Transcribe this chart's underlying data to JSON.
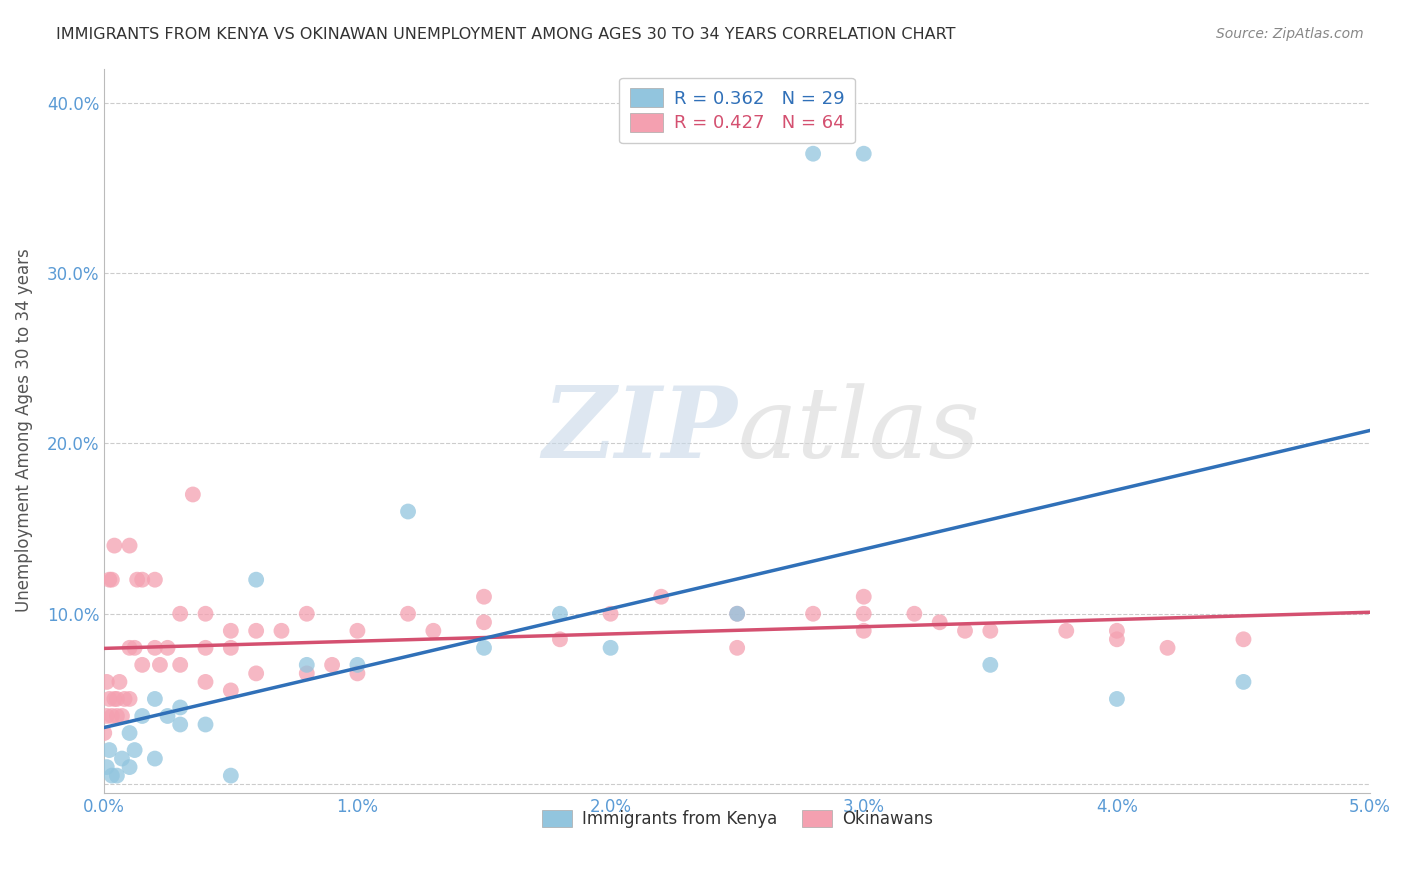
{
  "title": "IMMIGRANTS FROM KENYA VS OKINAWAN UNEMPLOYMENT AMONG AGES 30 TO 34 YEARS CORRELATION CHART",
  "source": "Source: ZipAtlas.com",
  "ylabel": "Unemployment Among Ages 30 to 34 years",
  "xlim": [
    0.0,
    0.05
  ],
  "ylim": [
    -0.005,
    0.42
  ],
  "xticks": [
    0.0,
    0.01,
    0.02,
    0.03,
    0.04,
    0.05
  ],
  "xtick_labels": [
    "0.0%",
    "1.0%",
    "2.0%",
    "3.0%",
    "4.0%",
    "5.0%"
  ],
  "yticks": [
    0.0,
    0.1,
    0.2,
    0.3,
    0.4
  ],
  "ytick_labels": [
    "",
    "10.0%",
    "20.0%",
    "30.0%",
    "40.0%"
  ],
  "legend1_label": "R = 0.362   N = 29",
  "legend2_label": "R = 0.427   N = 64",
  "series1_color": "#92c5de",
  "series2_color": "#f4a0b0",
  "trend1_color": "#3070b8",
  "trend2_color": "#d45070",
  "watermark_zip": "ZIP",
  "watermark_atlas": "atlas",
  "kenya_x": [
    0.0001,
    0.0002,
    0.0003,
    0.0005,
    0.0007,
    0.001,
    0.001,
    0.0012,
    0.0015,
    0.002,
    0.002,
    0.0025,
    0.003,
    0.003,
    0.004,
    0.005,
    0.006,
    0.008,
    0.01,
    0.012,
    0.015,
    0.018,
    0.02,
    0.025,
    0.028,
    0.03,
    0.035,
    0.04,
    0.045
  ],
  "kenya_y": [
    0.01,
    0.02,
    0.005,
    0.005,
    0.015,
    0.01,
    0.03,
    0.02,
    0.04,
    0.015,
    0.05,
    0.04,
    0.045,
    0.035,
    0.035,
    0.005,
    0.12,
    0.07,
    0.07,
    0.16,
    0.08,
    0.1,
    0.08,
    0.1,
    0.37,
    0.37,
    0.07,
    0.05,
    0.06
  ],
  "okinawan_x": [
    0.0,
    0.0001,
    0.0001,
    0.0002,
    0.0002,
    0.0003,
    0.0003,
    0.0004,
    0.0004,
    0.0005,
    0.0005,
    0.0006,
    0.0007,
    0.0008,
    0.001,
    0.001,
    0.001,
    0.0012,
    0.0013,
    0.0015,
    0.0015,
    0.002,
    0.002,
    0.0022,
    0.0025,
    0.003,
    0.003,
    0.0035,
    0.004,
    0.004,
    0.004,
    0.005,
    0.005,
    0.005,
    0.006,
    0.006,
    0.007,
    0.008,
    0.008,
    0.009,
    0.01,
    0.01,
    0.012,
    0.013,
    0.015,
    0.015,
    0.018,
    0.02,
    0.022,
    0.025,
    0.025,
    0.028,
    0.03,
    0.03,
    0.03,
    0.032,
    0.033,
    0.034,
    0.035,
    0.038,
    0.04,
    0.04,
    0.042,
    0.045
  ],
  "okinawan_y": [
    0.03,
    0.04,
    0.06,
    0.05,
    0.12,
    0.04,
    0.12,
    0.05,
    0.14,
    0.05,
    0.04,
    0.06,
    0.04,
    0.05,
    0.05,
    0.08,
    0.14,
    0.08,
    0.12,
    0.07,
    0.12,
    0.08,
    0.12,
    0.07,
    0.08,
    0.07,
    0.1,
    0.17,
    0.06,
    0.08,
    0.1,
    0.08,
    0.055,
    0.09,
    0.09,
    0.065,
    0.09,
    0.065,
    0.1,
    0.07,
    0.065,
    0.09,
    0.1,
    0.09,
    0.095,
    0.11,
    0.085,
    0.1,
    0.11,
    0.08,
    0.1,
    0.1,
    0.09,
    0.1,
    0.11,
    0.1,
    0.095,
    0.09,
    0.09,
    0.09,
    0.085,
    0.09,
    0.08,
    0.085
  ]
}
